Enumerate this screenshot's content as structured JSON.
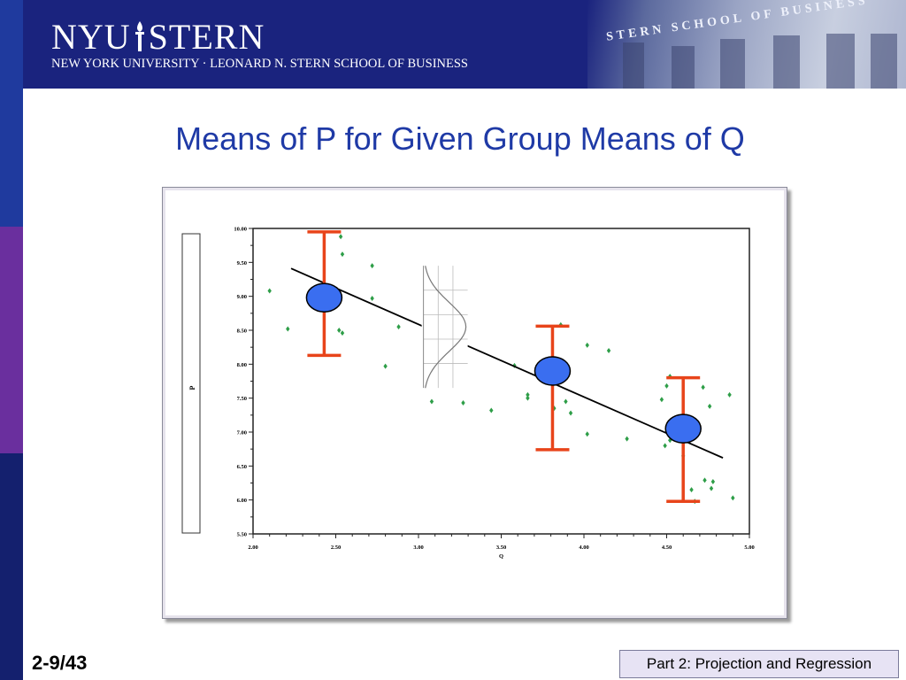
{
  "header": {
    "logo_left": "NYU",
    "logo_right": "STERN",
    "subtitle": "NEW YORK UNIVERSITY · LEONARD N. STERN SCHOOL OF BUSINESS",
    "building_text_1": "STERN SCHOOL OF BUSINESS"
  },
  "slide": {
    "title": "Means of P for Given Group Means of Q",
    "number": "2-9/43",
    "footer": "Part 2: Projection and Regression"
  },
  "colors": {
    "title": "#1f3aa6",
    "points": "#2e9e48",
    "error_bars": "#e8441a",
    "means": "#3a6ef0",
    "line": "#000000"
  },
  "chart_data": {
    "type": "scatter",
    "xlabel": "Q",
    "ylabel": "P",
    "xlim": [
      2.0,
      5.0
    ],
    "ylim": [
      5.5,
      10.0
    ],
    "x_ticks": [
      "2.00",
      "2.50",
      "3.00",
      "3.50",
      "4.00",
      "4.50",
      "5.00"
    ],
    "y_ticks": [
      "10.00",
      "9.50",
      "9.00",
      "8.50",
      "8.00",
      "7.50",
      "7.00",
      "6.50",
      "6.00",
      "5.50"
    ],
    "x_tick_values": [
      2.0,
      2.5,
      3.0,
      3.5,
      4.0,
      4.5,
      5.0
    ],
    "y_tick_values": [
      10.0,
      9.5,
      9.0,
      8.5,
      8.0,
      7.5,
      7.0,
      6.5,
      6.0,
      5.5
    ],
    "points": [
      [
        2.1,
        9.08
      ],
      [
        2.21,
        8.52
      ],
      [
        2.46,
        8.82
      ],
      [
        2.53,
        9.88
      ],
      [
        2.54,
        9.62
      ],
      [
        2.52,
        8.5
      ],
      [
        2.54,
        8.46
      ],
      [
        2.72,
        9.45
      ],
      [
        2.72,
        8.97
      ],
      [
        2.8,
        7.97
      ],
      [
        2.88,
        8.55
      ],
      [
        3.08,
        7.45
      ],
      [
        3.27,
        7.43
      ],
      [
        3.44,
        7.32
      ],
      [
        3.58,
        7.98
      ],
      [
        3.66,
        7.55
      ],
      [
        3.66,
        7.5
      ],
      [
        3.8,
        7.85
      ],
      [
        3.83,
        7.73
      ],
      [
        3.82,
        7.35
      ],
      [
        3.86,
        8.58
      ],
      [
        3.89,
        7.45
      ],
      [
        3.92,
        7.28
      ],
      [
        4.02,
        8.28
      ],
      [
        4.02,
        6.97
      ],
      [
        4.15,
        8.2
      ],
      [
        4.26,
        6.9
      ],
      [
        4.47,
        7.48
      ],
      [
        4.49,
        6.8
      ],
      [
        4.5,
        7.68
      ],
      [
        4.52,
        7.82
      ],
      [
        4.52,
        6.88
      ],
      [
        4.6,
        6.65
      ],
      [
        4.65,
        6.15
      ],
      [
        4.67,
        5.98
      ],
      [
        4.72,
        7.66
      ],
      [
        4.73,
        6.29
      ],
      [
        4.77,
        6.17
      ],
      [
        4.78,
        6.27
      ],
      [
        4.76,
        7.38
      ],
      [
        4.88,
        7.55
      ],
      [
        4.9,
        6.03
      ]
    ],
    "regression_line": [
      [
        2.23,
        9.41
      ],
      [
        4.84,
        6.62
      ]
    ],
    "group_means": [
      {
        "x": 2.43,
        "y": 8.98,
        "err_low": 8.13,
        "err_high": 9.95
      },
      {
        "x": 3.81,
        "y": 7.9,
        "err_low": 6.74,
        "err_high": 8.56
      },
      {
        "x": 4.6,
        "y": 7.05,
        "err_low": 5.98,
        "err_high": 7.8
      }
    ],
    "density_inset": {
      "x_center": 3.03,
      "y_center": 8.55,
      "y_half_range": 0.9
    },
    "grid": false
  }
}
